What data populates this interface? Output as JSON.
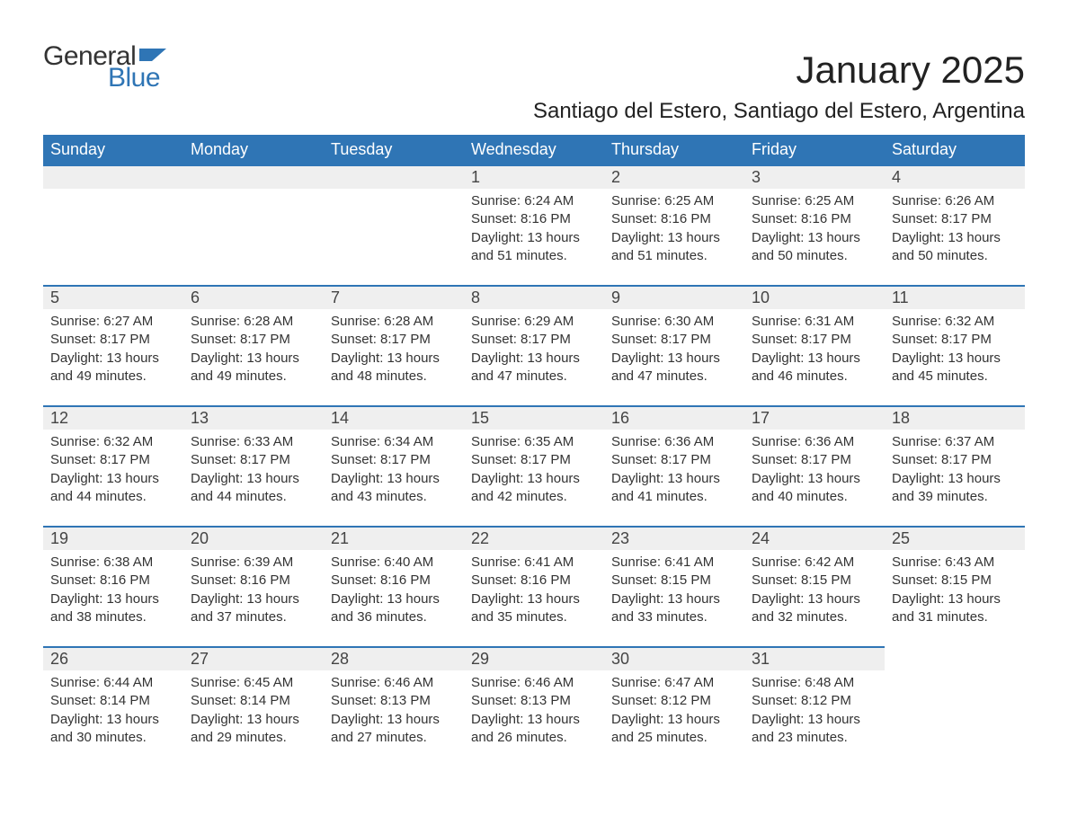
{
  "logo": {
    "general": "General",
    "blue": "Blue",
    "flag_color": "#2f75b5"
  },
  "title": "January 2025",
  "subtitle": "Santiago del Estero, Santiago del Estero, Argentina",
  "header_bg": "#2f75b5",
  "header_fg": "#ffffff",
  "row_accent": "#2f75b5",
  "daynum_bg": "#efefef",
  "text_color": "#333333",
  "columns": [
    "Sunday",
    "Monday",
    "Tuesday",
    "Wednesday",
    "Thursday",
    "Friday",
    "Saturday"
  ],
  "weeks": [
    [
      null,
      null,
      null,
      {
        "n": "1",
        "sr": "6:24 AM",
        "ss": "8:16 PM",
        "dl": "13 hours and 51 minutes."
      },
      {
        "n": "2",
        "sr": "6:25 AM",
        "ss": "8:16 PM",
        "dl": "13 hours and 51 minutes."
      },
      {
        "n": "3",
        "sr": "6:25 AM",
        "ss": "8:16 PM",
        "dl": "13 hours and 50 minutes."
      },
      {
        "n": "4",
        "sr": "6:26 AM",
        "ss": "8:17 PM",
        "dl": "13 hours and 50 minutes."
      }
    ],
    [
      {
        "n": "5",
        "sr": "6:27 AM",
        "ss": "8:17 PM",
        "dl": "13 hours and 49 minutes."
      },
      {
        "n": "6",
        "sr": "6:28 AM",
        "ss": "8:17 PM",
        "dl": "13 hours and 49 minutes."
      },
      {
        "n": "7",
        "sr": "6:28 AM",
        "ss": "8:17 PM",
        "dl": "13 hours and 48 minutes."
      },
      {
        "n": "8",
        "sr": "6:29 AM",
        "ss": "8:17 PM",
        "dl": "13 hours and 47 minutes."
      },
      {
        "n": "9",
        "sr": "6:30 AM",
        "ss": "8:17 PM",
        "dl": "13 hours and 47 minutes."
      },
      {
        "n": "10",
        "sr": "6:31 AM",
        "ss": "8:17 PM",
        "dl": "13 hours and 46 minutes."
      },
      {
        "n": "11",
        "sr": "6:32 AM",
        "ss": "8:17 PM",
        "dl": "13 hours and 45 minutes."
      }
    ],
    [
      {
        "n": "12",
        "sr": "6:32 AM",
        "ss": "8:17 PM",
        "dl": "13 hours and 44 minutes."
      },
      {
        "n": "13",
        "sr": "6:33 AM",
        "ss": "8:17 PM",
        "dl": "13 hours and 44 minutes."
      },
      {
        "n": "14",
        "sr": "6:34 AM",
        "ss": "8:17 PM",
        "dl": "13 hours and 43 minutes."
      },
      {
        "n": "15",
        "sr": "6:35 AM",
        "ss": "8:17 PM",
        "dl": "13 hours and 42 minutes."
      },
      {
        "n": "16",
        "sr": "6:36 AM",
        "ss": "8:17 PM",
        "dl": "13 hours and 41 minutes."
      },
      {
        "n": "17",
        "sr": "6:36 AM",
        "ss": "8:17 PM",
        "dl": "13 hours and 40 minutes."
      },
      {
        "n": "18",
        "sr": "6:37 AM",
        "ss": "8:17 PM",
        "dl": "13 hours and 39 minutes."
      }
    ],
    [
      {
        "n": "19",
        "sr": "6:38 AM",
        "ss": "8:16 PM",
        "dl": "13 hours and 38 minutes."
      },
      {
        "n": "20",
        "sr": "6:39 AM",
        "ss": "8:16 PM",
        "dl": "13 hours and 37 minutes."
      },
      {
        "n": "21",
        "sr": "6:40 AM",
        "ss": "8:16 PM",
        "dl": "13 hours and 36 minutes."
      },
      {
        "n": "22",
        "sr": "6:41 AM",
        "ss": "8:16 PM",
        "dl": "13 hours and 35 minutes."
      },
      {
        "n": "23",
        "sr": "6:41 AM",
        "ss": "8:15 PM",
        "dl": "13 hours and 33 minutes."
      },
      {
        "n": "24",
        "sr": "6:42 AM",
        "ss": "8:15 PM",
        "dl": "13 hours and 32 minutes."
      },
      {
        "n": "25",
        "sr": "6:43 AM",
        "ss": "8:15 PM",
        "dl": "13 hours and 31 minutes."
      }
    ],
    [
      {
        "n": "26",
        "sr": "6:44 AM",
        "ss": "8:14 PM",
        "dl": "13 hours and 30 minutes."
      },
      {
        "n": "27",
        "sr": "6:45 AM",
        "ss": "8:14 PM",
        "dl": "13 hours and 29 minutes."
      },
      {
        "n": "28",
        "sr": "6:46 AM",
        "ss": "8:13 PM",
        "dl": "13 hours and 27 minutes."
      },
      {
        "n": "29",
        "sr": "6:46 AM",
        "ss": "8:13 PM",
        "dl": "13 hours and 26 minutes."
      },
      {
        "n": "30",
        "sr": "6:47 AM",
        "ss": "8:12 PM",
        "dl": "13 hours and 25 minutes."
      },
      {
        "n": "31",
        "sr": "6:48 AM",
        "ss": "8:12 PM",
        "dl": "13 hours and 23 minutes."
      },
      null
    ]
  ],
  "labels": {
    "sunrise": "Sunrise:",
    "sunset": "Sunset:",
    "daylight": "Daylight:"
  }
}
